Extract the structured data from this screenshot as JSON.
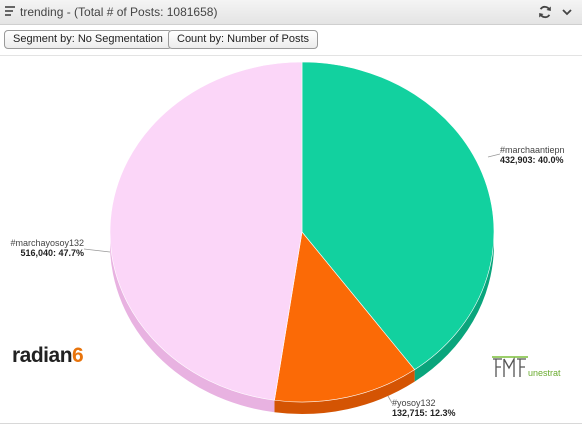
{
  "header": {
    "title": "trending - (Total # of Posts: 1081658)",
    "menu_icon": "hamburger-icon",
    "refresh_icon": "refresh-icon",
    "collapse_icon": "chevron-down-icon"
  },
  "toolbar": {
    "segment_label": "Segment by: No Segmentation",
    "count_label": "Count by: Number of Posts"
  },
  "chart_data": {
    "type": "pie",
    "title": "",
    "slices": [
      {
        "name": "#marchaantiepn",
        "value": 432903,
        "percent": 40.0,
        "label": "432,903: 40.0%",
        "color": "#12d19f",
        "side": "#0aa57c"
      },
      {
        "name": "#yosoy132",
        "value": 132715,
        "percent": 12.3,
        "label": "132,715: 12.3%",
        "color": "#fb6a06",
        "side": "#d45403"
      },
      {
        "name": "#marchayosoy132",
        "value": 516040,
        "percent": 47.7,
        "label": "516,040: 47.7%",
        "color": "#fbd6f8",
        "side": "#e8b2e1"
      }
    ],
    "legend": "none"
  },
  "logos": {
    "radian_text": "radian",
    "radian_suffix": "6",
    "fmf_text": "FMF",
    "fmf_suffix": "unestrat"
  }
}
